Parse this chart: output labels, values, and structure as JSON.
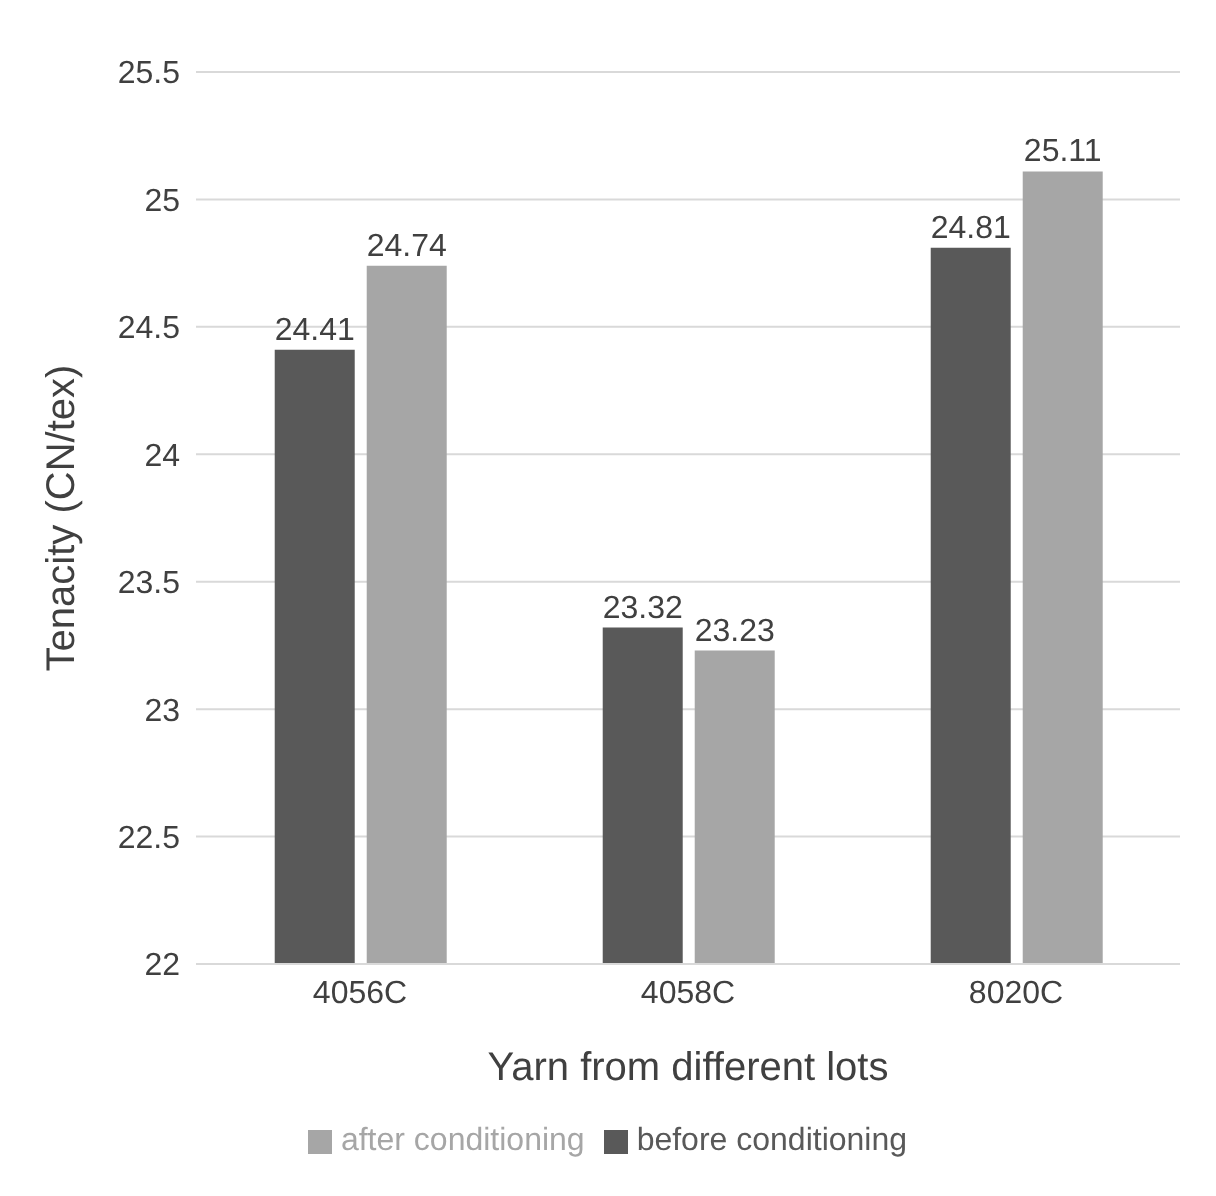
{
  "chart_data": {
    "type": "bar",
    "xlabel": "Yarn from different lots",
    "ylabel": "Tenacity (CN/tex)",
    "categories": [
      "4056C",
      "4058C",
      "8020C"
    ],
    "series": [
      {
        "name": "before conditioning",
        "color": "#595959",
        "values": [
          24.41,
          23.32,
          24.81
        ]
      },
      {
        "name": "after conditioning",
        "color": "#a6a6a6",
        "values": [
          24.74,
          23.23,
          25.11
        ]
      }
    ],
    "ylim": [
      22,
      25.5
    ],
    "yticks": [
      22,
      22.5,
      23,
      23.5,
      24,
      24.5,
      25,
      25.5
    ],
    "grid": "y",
    "legend": "bottom",
    "data_labels": true
  }
}
